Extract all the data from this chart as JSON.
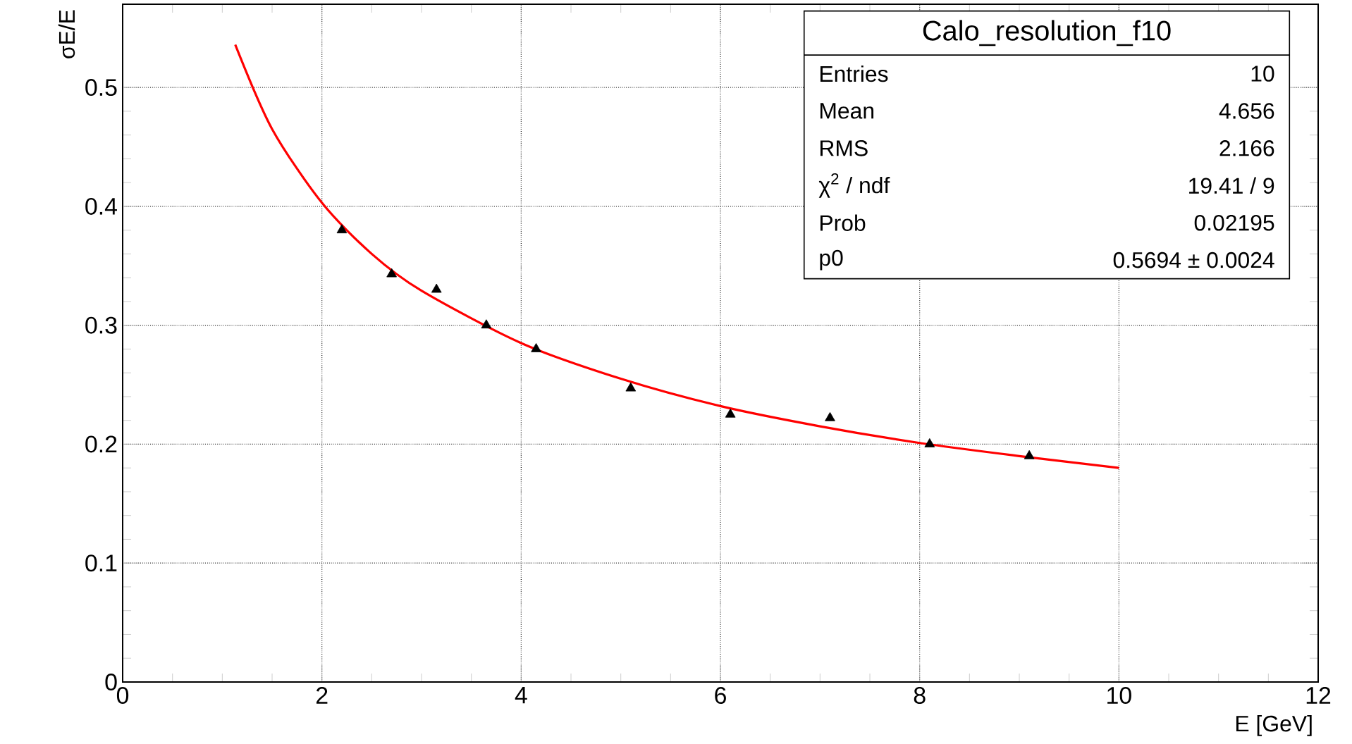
{
  "chart_data": {
    "type": "scatter",
    "title": "Calo_resolution_f10",
    "xlabel": "E [GeV]",
    "ylabel": "σE/E",
    "annotations": [
      "Entries",
      "10",
      "Mean",
      "4.656",
      "RMS",
      "2.166",
      "χ$^{2}$ / ndf",
      "19.41 / 9",
      "Prob",
      "0.02195",
      "p0",
      "0.5694 ± 0.0024"
    ],
    "series": [
      {
        "color": "#000000",
        "marker": "triangle",
        "x": [
          2.2,
          2.7,
          3.15,
          3.65,
          4.15,
          5.1,
          6.1,
          7.1,
          8.1,
          9.1
        ],
        "values": [
          0.38,
          0.343,
          0.33,
          0.3,
          0.28,
          0.247,
          0.225,
          0.222,
          0.2,
          0.19
        ]
      },
      {
        "type": "line",
        "color": "#ff0000",
        "marker": "none",
        "line_style": "solid",
        "x": [
          1.13,
          1.5,
          2,
          2.5,
          3,
          4,
          5,
          6,
          7,
          8,
          9,
          10
        ],
        "values": [
          0.536,
          0.465,
          0.403,
          0.36,
          0.329,
          0.285,
          0.255,
          0.232,
          0.215,
          0.201,
          0.19,
          0.18
        ]
      }
    ],
    "xlim": [
      0,
      12
    ],
    "ylim": [
      0,
      0.57
    ],
    "xticks": [
      0,
      2,
      4,
      6,
      8,
      10,
      12
    ],
    "yticks": [
      0,
      0.1,
      0.2,
      0.3,
      0.4,
      0.5
    ],
    "grid": true
  }
}
